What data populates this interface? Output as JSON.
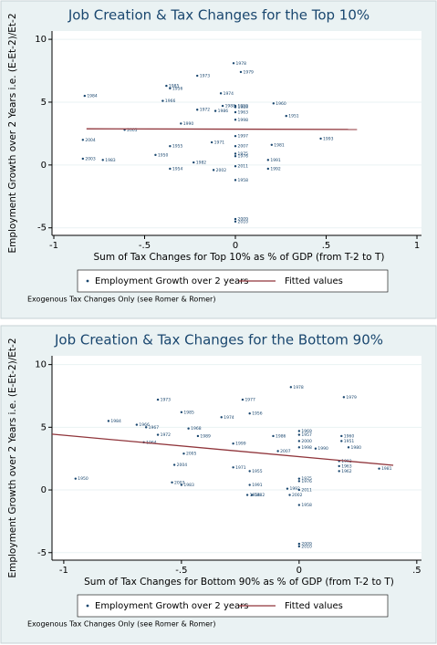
{
  "chart_data": [
    {
      "type": "scatter",
      "title": "Job Creation & Tax Changes for the Top 10%",
      "x_label": "Sum of Tax Changes for Top 10% as % of GDP (from T-2 to T)",
      "y_label": "Employment Growth over 2 Years i.e. (E-Et-2)/Et-2",
      "note": "Exogenous Tax Changes Only (see Romer & Romer)",
      "xlim": [
        -1.01,
        1.025
      ],
      "ylim": [
        -5.6,
        10.66
      ],
      "xticks": [
        -1,
        {
          "value": -0.5,
          "label": "-.5"
        },
        0,
        {
          "value": 0.5,
          "label": ".5"
        },
        1
      ],
      "yticks": [
        -5,
        0,
        5,
        10
      ],
      "grid": true,
      "series": [
        {
          "name": "Employment Growth over 2 years",
          "color": "#1a476f",
          "mode": "markers",
          "point_labels": [
            "1984",
            "1978",
            "1979",
            "1973",
            "1985",
            "1956",
            "1974",
            "1966",
            "1960",
            "1988",
            "1972",
            "1986",
            "1969",
            "1951",
            "1990",
            "2005",
            "2004",
            "1993",
            "1971",
            "1955",
            "1981",
            "1950",
            "2003",
            "1983",
            "1982",
            "1991",
            "1954",
            "2002",
            "2011",
            "1992",
            "1958",
            "2009",
            "2010",
            "1959",
            "1963",
            "1998",
            "1997",
            "2007",
            "1975",
            "1976"
          ],
          "x": [
            -0.83,
            -0.01,
            0.03,
            -0.21,
            -0.38,
            -0.36,
            -0.08,
            -0.4,
            0.21,
            -0.07,
            -0.21,
            -0.11,
            0,
            0.28,
            -0.3,
            -0.61,
            -0.84,
            0.47,
            -0.13,
            -0.36,
            0.2,
            -0.44,
            -0.84,
            -0.73,
            -0.23,
            0.18,
            -0.36,
            -0.12,
            0,
            0.18,
            0,
            0,
            0,
            0,
            0,
            0,
            0,
            0,
            0,
            0
          ],
          "values": [
            5.5,
            8.1,
            7.4,
            7.1,
            6.3,
            6.1,
            5.7,
            5.1,
            4.9,
            4.7,
            4.4,
            4.3,
            4.6,
            3.9,
            3.3,
            2.8,
            2.0,
            2.1,
            1.8,
            1.5,
            1.6,
            0.8,
            0.5,
            0.4,
            0.2,
            0.4,
            -0.3,
            -0.4,
            -0.1,
            -0.3,
            -1.2,
            -4.3,
            -4.5,
            4.7,
            4.2,
            3.6,
            2.3,
            1.5,
            0.9,
            0.7
          ]
        },
        {
          "name": "Fitted values",
          "color": "#90353b",
          "mode": "line",
          "x": [
            -0.82,
            0.67
          ],
          "values": [
            2.88,
            2.83
          ]
        }
      ]
    },
    {
      "type": "scatter",
      "title": "Job Creation & Tax Changes for the Bottom 90%",
      "x_label": "Sum of Tax Changes for Bottom 90% as % of GDP (from T-2 to T)",
      "y_label": "Employment Growth over 2 Years i.e. (E-Et-2)/Et-2",
      "note": "Exogenous Tax Changes Only (see Romer & Romer)",
      "xlim": [
        -1.05,
        0.52
      ],
      "ylim": [
        -5.6,
        10.7
      ],
      "xticks": [
        -1,
        {
          "value": -0.5,
          "label": "-.5"
        },
        0,
        {
          "value": 0.5,
          "label": ".5"
        }
      ],
      "yticks": [
        -5,
        0,
        5,
        10
      ],
      "grid": true,
      "series": [
        {
          "name": "Employment Growth over 2 years",
          "color": "#1a476f",
          "mode": "markers",
          "point_labels": [
            "1978",
            "1979",
            "1973",
            "1977",
            "1985",
            "1956",
            "1984",
            "1974",
            "1966",
            "1967",
            "1968",
            "1972",
            "1989",
            "1986",
            "1960",
            "1969",
            "1964",
            "1951",
            "1999",
            "1990",
            "1980",
            "2005",
            "2007",
            "1971",
            "2004",
            "1993",
            "1963",
            "1962",
            "1981",
            "1955",
            "1950",
            "2003",
            "1983",
            "1991",
            "1992",
            "1954",
            "1982",
            "2002",
            "2011",
            "1958",
            "2009",
            "2010",
            "1998",
            "2000",
            "1975",
            "1976",
            "1957"
          ],
          "x": [
            -0.035,
            0.19,
            -0.6,
            -0.24,
            -0.5,
            -0.21,
            -0.81,
            -0.33,
            -0.69,
            -0.65,
            -0.47,
            -0.6,
            -0.43,
            -0.11,
            0.18,
            0,
            -0.66,
            0.18,
            -0.28,
            0.07,
            0.21,
            -0.49,
            -0.09,
            -0.28,
            -0.53,
            0.17,
            0.17,
            0.17,
            0.34,
            -0.21,
            -0.95,
            -0.54,
            -0.5,
            -0.21,
            -0.05,
            -0.22,
            -0.2,
            -0.04,
            0,
            0,
            0,
            0,
            0,
            0,
            0,
            0,
            0
          ],
          "values": [
            8.2,
            7.4,
            7.2,
            7.2,
            6.2,
            6.1,
            5.5,
            5.8,
            5.2,
            5.0,
            4.9,
            4.4,
            4.3,
            4.3,
            4.3,
            4.7,
            3.8,
            3.9,
            3.7,
            3.3,
            3.4,
            2.9,
            3.1,
            1.8,
            2.0,
            2.3,
            1.9,
            1.5,
            1.7,
            1.5,
            0.9,
            0.6,
            0.4,
            0.4,
            0.1,
            -0.4,
            -0.4,
            -0.4,
            0,
            -1.2,
            -4.3,
            -4.5,
            3.4,
            3.9,
            0.9,
            0.7,
            4.4
          ]
        },
        {
          "name": "Fitted values",
          "color": "#90353b",
          "mode": "line",
          "x": [
            -1.05,
            0.4
          ],
          "values": [
            4.45,
            1.97
          ]
        }
      ]
    }
  ]
}
